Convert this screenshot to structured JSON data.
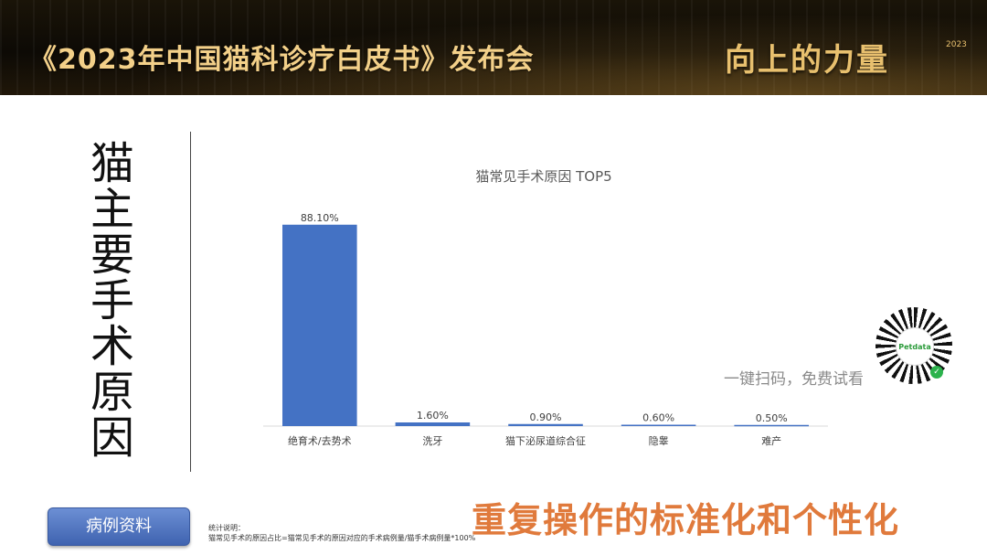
{
  "header": {
    "title": "《2023年中国猫科诊疗白皮书》发布会",
    "logo_text": "向上的力量",
    "logo_year": "2023"
  },
  "side_title": "猫主要手术原因",
  "chart_data": {
    "type": "bar",
    "title": "猫常见手术原因 TOP5",
    "categories": [
      "绝育术/去势术",
      "洗牙",
      "猫下泌尿道综合征",
      "隐睾",
      "难产"
    ],
    "values": [
      88.1,
      1.6,
      0.9,
      0.6,
      0.5
    ],
    "value_labels": [
      "88.10%",
      "1.60%",
      "0.90%",
      "0.60%",
      "0.50%"
    ],
    "xlabel": "",
    "ylabel": "",
    "ylim": [
      0,
      100
    ],
    "grid": false,
    "bar_color": "#4472c4"
  },
  "qr": {
    "caption": "一键扫码，免费试看",
    "center_label": "Petdata"
  },
  "case_button_label": "病例资料",
  "note": {
    "title": "统计说明：",
    "body": "猫常见手术的原因占比=猫常见手术的原因对应的手术病例量/猫手术病例量*100%"
  },
  "slogan": "重复操作的标准化和个性化"
}
